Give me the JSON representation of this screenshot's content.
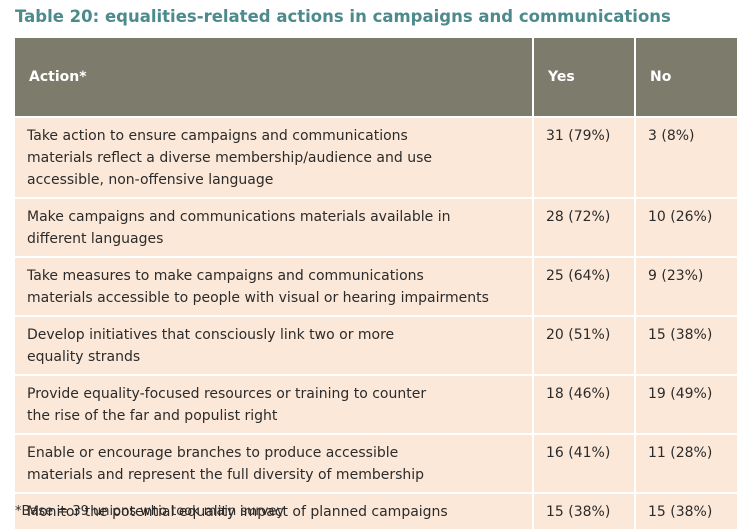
{
  "title": "Table 20: equalities-related actions in campaigns and communications",
  "table": {
    "header": [
      "Action*",
      "Yes",
      "No"
    ],
    "rows": [
      {
        "action": [
          "Take action to ensure campaigns and communications",
          "materials reflect a diverse membership/audience and use",
          "accessible, non-offensive language"
        ],
        "yes": "31 (79%)",
        "no": "3 (8%)"
      },
      {
        "action": [
          "Make campaigns and communications materials available in",
          "different languages"
        ],
        "yes": "28 (72%)",
        "no": "10 (26%)"
      },
      {
        "action": [
          "Take measures to make campaigns and communications",
          "materials accessible to people with visual or hearing impairments"
        ],
        "yes": "25 (64%)",
        "no": "9 (23%)"
      },
      {
        "action": [
          "Develop initiatives that consciously link two or more",
          "equality strands"
        ],
        "yes": "20 (51%)",
        "no": "15 (38%)"
      },
      {
        "action": [
          "Provide equality-focused resources or training to counter",
          "the rise of the far and populist right"
        ],
        "yes": "18 (46%)",
        "no": "19 (49%)"
      },
      {
        "action": [
          "Enable or encourage branches to produce accessible",
          "materials and represent the full diversity of membership"
        ],
        "yes": "16 (41%)",
        "no": "11 (28%)"
      },
      {
        "action": [
          "Monitor the potential equality impact of planned campaigns"
        ],
        "yes": "15 (38%)",
        "no": "15 (38%)"
      }
    ]
  },
  "footnote": "*Base = 39 unions who took main survey"
}
